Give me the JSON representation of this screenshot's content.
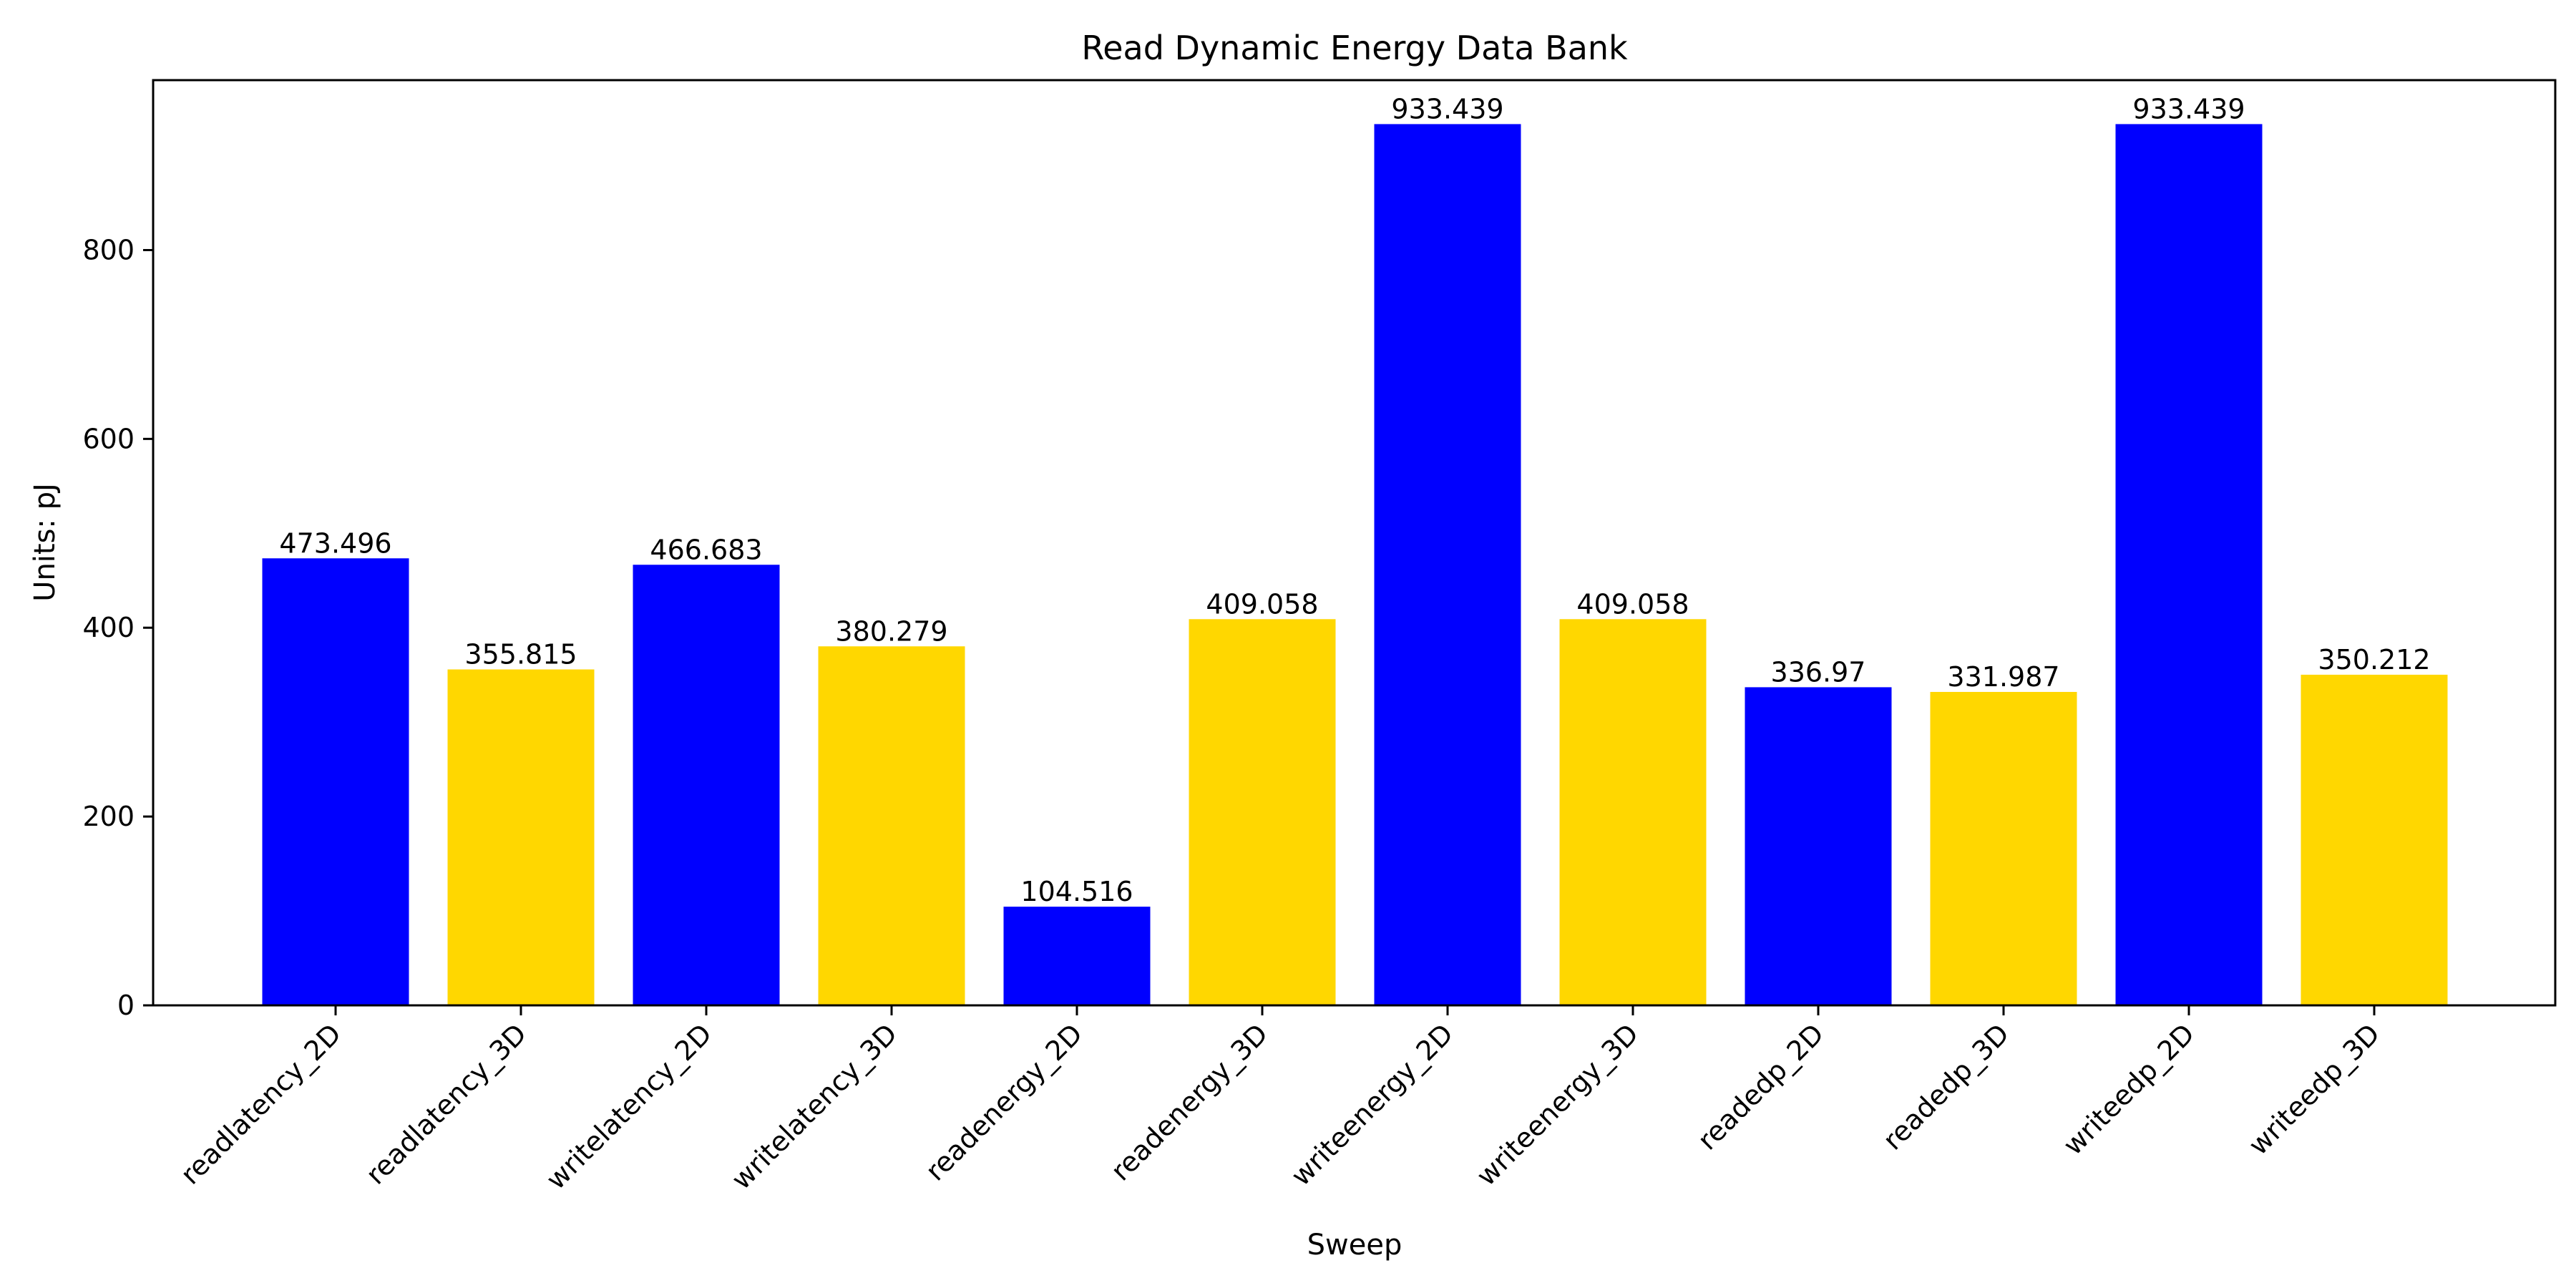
{
  "chart_data": {
    "type": "bar",
    "title": "Read Dynamic Energy Data Bank",
    "xlabel": "Sweep",
    "ylabel": "Units: pJ",
    "ylim": [
      0,
      980
    ],
    "yticks": [
      0,
      200,
      400,
      600,
      800
    ],
    "grid": false,
    "categories": [
      "readlatency_2D",
      "readlatency_3D",
      "writelatency_2D",
      "writelatency_3D",
      "readenergy_2D",
      "readenergy_3D",
      "writeenergy_2D",
      "writeenergy_3D",
      "readedp_2D",
      "readedp_3D",
      "writeedp_2D",
      "writeedp_3D"
    ],
    "values": [
      473.496,
      355.815,
      466.683,
      380.279,
      104.516,
      409.058,
      933.439,
      409.058,
      336.97,
      331.987,
      933.439,
      350.212
    ],
    "value_labels": [
      "473.496",
      "355.815",
      "466.683",
      "380.279",
      "104.516",
      "409.058",
      "933.439",
      "409.058",
      "336.97",
      "331.987",
      "933.439",
      "350.212"
    ],
    "bar_colors": [
      "#0000ff",
      "#ffd700",
      "#0000ff",
      "#ffd700",
      "#0000ff",
      "#ffd700",
      "#0000ff",
      "#ffd700",
      "#0000ff",
      "#ffd700",
      "#0000ff",
      "#ffd700"
    ]
  }
}
